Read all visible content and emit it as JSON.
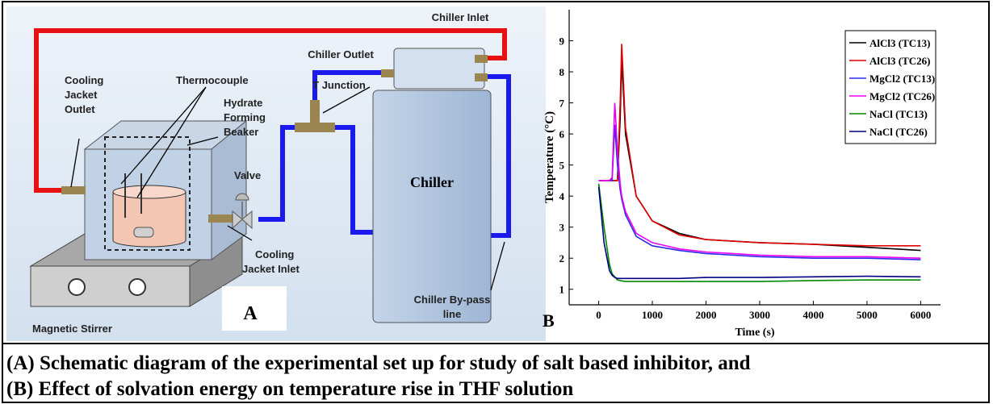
{
  "diagram": {
    "chiller_inlet": "Chiller Inlet",
    "chiller_outlet": "Chiller Outlet",
    "t_junction": "T Junction",
    "cooling_jacket_outlet": [
      "Cooling",
      "Jacket",
      "Outlet"
    ],
    "thermocouple": "Thermocouple",
    "hydrate_forming_beaker": [
      "Hydrate",
      "Forming",
      "Beaker"
    ],
    "valve": "Valve",
    "chiller": "Chiller",
    "cooling_jacket_inlet": [
      "Cooling",
      "Jacket Inlet"
    ],
    "chiller_bypass": [
      "Chiller By-pass",
      "line"
    ],
    "magnetic_stirrer": "Magnetic Stirrer",
    "panel_label": "A"
  },
  "chart_data": {
    "type": "line",
    "panel_label": "B",
    "xlabel": "Time (s)",
    "ylabel": "Temperature (°C)",
    "x": [
      0,
      100,
      200,
      250,
      300,
      350,
      400,
      430,
      500,
      700,
      1000,
      1500,
      2000,
      3000,
      4000,
      5000,
      6000
    ],
    "series": [
      {
        "name": "AlCl3 (TC13)",
        "color": "#000000",
        "values": [
          4.5,
          4.5,
          4.5,
          4.5,
          4.5,
          4.5,
          6.5,
          8.4,
          6.0,
          4.0,
          3.2,
          2.8,
          2.6,
          2.5,
          2.45,
          2.35,
          2.25
        ]
      },
      {
        "name": "AlCl3 (TC26)",
        "color": "#e00000",
        "values": [
          4.5,
          4.5,
          4.5,
          4.5,
          4.5,
          4.5,
          7.0,
          8.9,
          6.2,
          4.0,
          3.2,
          2.75,
          2.6,
          2.5,
          2.45,
          2.4,
          2.4
        ]
      },
      {
        "name": "MgCl2 (TC13)",
        "color": "#2a2aee",
        "values": [
          4.5,
          4.5,
          4.5,
          4.5,
          6.3,
          5.0,
          4.2,
          3.9,
          3.4,
          2.7,
          2.4,
          2.25,
          2.15,
          2.05,
          2.0,
          2.0,
          1.95
        ]
      },
      {
        "name": "MgCl2 (TC26)",
        "color": "#ee00ee",
        "values": [
          4.5,
          4.5,
          4.5,
          4.6,
          7.0,
          5.5,
          4.4,
          4.0,
          3.5,
          2.8,
          2.5,
          2.3,
          2.2,
          2.1,
          2.05,
          2.05,
          2.0
        ]
      },
      {
        "name": "NaCl (TC13)",
        "color": "#008800",
        "values": [
          4.4,
          3.0,
          1.8,
          1.5,
          1.4,
          1.3,
          1.28,
          1.27,
          1.25,
          1.25,
          1.25,
          1.25,
          1.25,
          1.25,
          1.28,
          1.3,
          1.3
        ]
      },
      {
        "name": "NaCl (TC26)",
        "color": "#000080",
        "values": [
          4.3,
          2.5,
          1.6,
          1.45,
          1.38,
          1.35,
          1.35,
          1.35,
          1.35,
          1.35,
          1.35,
          1.35,
          1.38,
          1.38,
          1.4,
          1.42,
          1.4
        ]
      }
    ],
    "xlim": [
      -550,
      6370
    ],
    "ylim": [
      0.5,
      10
    ],
    "xticks": [
      0,
      1000,
      2000,
      3000,
      4000,
      5000,
      6000
    ],
    "yticks": [
      1,
      2,
      3,
      4,
      5,
      6,
      7,
      8,
      9
    ],
    "legend": "upper right"
  },
  "caption": [
    "(A) Schematic diagram of the experimental set up for study of salt based inhibitor, and",
    "(B) Effect of solvation energy on temperature rise in THF solution"
  ]
}
